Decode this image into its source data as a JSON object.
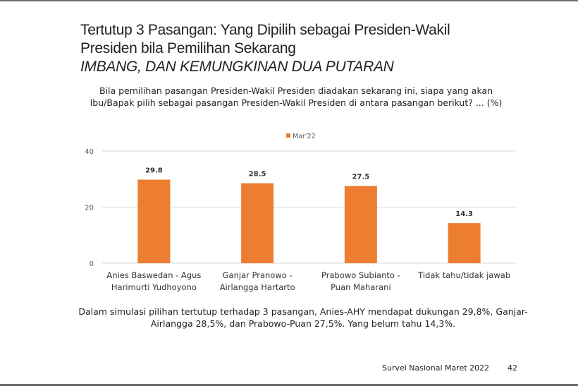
{
  "slide": {
    "title_line1": "Tertutup 3 Pasangan: Yang Dipilih sebagai Presiden-Wakil",
    "title_line2": "Presiden bila Pemilihan Sekarang",
    "subtitle": "IMBANG, DAN KEMUNGKINAN DUA PUTARAN",
    "question": "Bila pemilihan pasangan Presiden-Wakil Presiden diadakan sekarang ini, siapa yang akan Ibu/Bapak pilih sebagai pasangan Presiden-Wakil Presiden di antara pasangan berikut? ... (%)",
    "note": "Dalam simulasi pilihan tertutup terhadap 3 pasangan, Anies-AHY mendapat dukungan 29,8%, Ganjar-Airlangga 28,5%, dan Prabowo-Puan 27,5%. Yang belum tahu 14,3%.",
    "footer": "Survei Nasional Maret 2022",
    "page_number": "42"
  },
  "chart_data": {
    "type": "bar",
    "categories": [
      [
        "Anies Baswedan - Agus",
        "Harimurti Yudhoyono"
      ],
      [
        "Ganjar Pranowo -",
        "Airlangga Hartarto"
      ],
      [
        "Prabowo Subianto -",
        "Puan Maharani"
      ],
      [
        "Tidak tahu/tidak jawab"
      ]
    ],
    "series": [
      {
        "name": "Mar'22",
        "values": [
          29.8,
          28.5,
          27.5,
          14.3
        ],
        "color": "#ED7D31"
      }
    ],
    "data_labels": [
      "29.8",
      "28.5",
      "27.5",
      "14.3"
    ],
    "ylim": [
      0,
      40
    ],
    "yticks": [
      0,
      20,
      40
    ],
    "grid": true,
    "legend_position": "top"
  }
}
